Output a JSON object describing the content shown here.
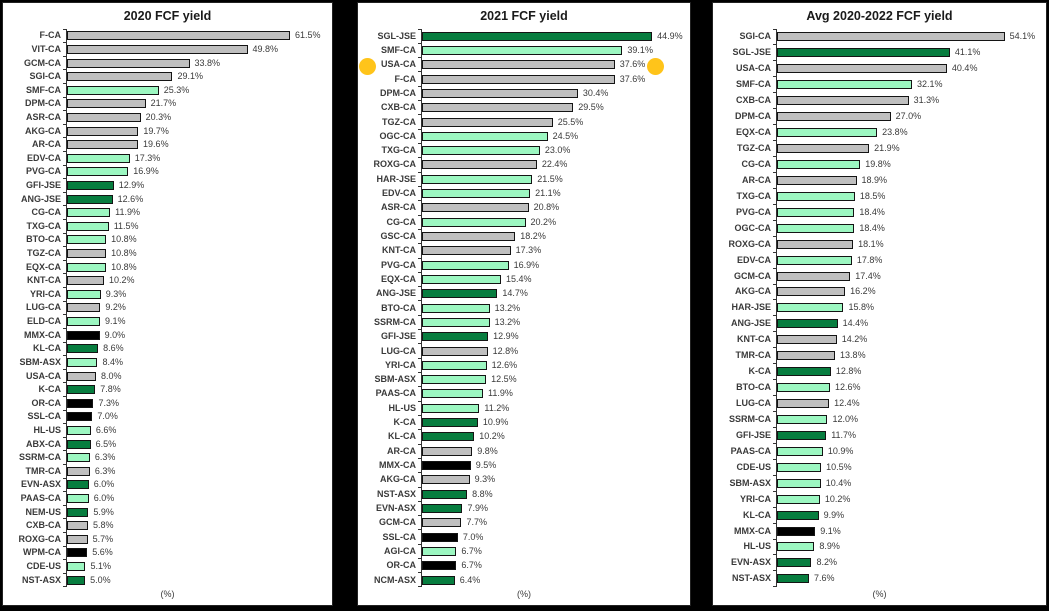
{
  "colors": {
    "gray": "#BFBFBF",
    "green_light": "#9CF7C1",
    "green_dark": "#077D3F",
    "black": "#000000",
    "bar_border": "#141414",
    "text": "#3A3A3A",
    "title_text": "#1A1A1A",
    "highlight_yellow": "#FFC41A",
    "panel_bg": "#FFFFFF",
    "frame_bg": "#000000"
  },
  "annotations": [
    {
      "shape": "circle",
      "side": "left",
      "anchor_category": "USA-CA",
      "chart": "2021 FCF yield",
      "color": "#FFC41A"
    },
    {
      "shape": "circle",
      "side": "right",
      "anchor_category": "USA-CA",
      "chart": "2021 FCF yield",
      "color": "#FFC41A"
    }
  ],
  "chart_data": [
    {
      "type": "bar",
      "orientation": "horizontal",
      "title": "2020 FCF yield",
      "xlabel": "(%)",
      "xlim": [
        0,
        72
      ],
      "grid": false,
      "legend": false,
      "value_label_format": "{value}%",
      "categories": [
        "F-CA",
        "VIT-CA",
        "GCM-CA",
        "SGI-CA",
        "SMF-CA",
        "DPM-CA",
        "ASR-CA",
        "AKG-CA",
        "AR-CA",
        "EDV-CA",
        "PVG-CA",
        "GFI-JSE",
        "ANG-JSE",
        "CG-CA",
        "TXG-CA",
        "BTO-CA",
        "TGZ-CA",
        "EQX-CA",
        "KNT-CA",
        "YRI-CA",
        "LUG-CA",
        "ELD-CA",
        "MMX-CA",
        "KL-CA",
        "SBM-ASX",
        "USA-CA",
        "K-CA",
        "OR-CA",
        "SSL-CA",
        "HL-US",
        "ABX-CA",
        "SSRM-CA",
        "TMR-CA",
        "EVN-ASX",
        "PAAS-CA",
        "NEM-US",
        "CXB-CA",
        "ROXG-CA",
        "WPM-CA",
        "CDE-US",
        "NST-ASX"
      ],
      "values": [
        61.5,
        49.8,
        33.8,
        29.1,
        25.3,
        21.7,
        20.3,
        19.7,
        19.6,
        17.3,
        16.9,
        12.9,
        12.6,
        11.9,
        11.5,
        10.8,
        10.8,
        10.8,
        10.2,
        9.3,
        9.2,
        9.1,
        9.0,
        8.6,
        8.4,
        8.0,
        7.8,
        7.3,
        7.0,
        6.6,
        6.5,
        6.3,
        6.3,
        6.0,
        6.0,
        5.9,
        5.8,
        5.7,
        5.6,
        5.1,
        5.0
      ],
      "bar_colors": [
        "gray",
        "gray",
        "gray",
        "gray",
        "green_light",
        "gray",
        "gray",
        "gray",
        "gray",
        "green_light",
        "green_light",
        "green_dark",
        "green_dark",
        "green_light",
        "green_light",
        "green_light",
        "gray",
        "green_light",
        "gray",
        "green_light",
        "gray",
        "green_light",
        "black",
        "green_dark",
        "green_light",
        "gray",
        "green_dark",
        "black",
        "black",
        "green_light",
        "green_dark",
        "green_light",
        "gray",
        "green_dark",
        "green_light",
        "green_dark",
        "gray",
        "gray",
        "black",
        "green_light",
        "green_dark"
      ]
    },
    {
      "type": "bar",
      "orientation": "horizontal",
      "title": "2021 FCF yield",
      "xlabel": "(%)",
      "xlim": [
        0,
        51.5
      ],
      "grid": false,
      "legend": false,
      "value_label_format": "{value}%",
      "categories": [
        "SGL-JSE",
        "SMF-CA",
        "USA-CA",
        "F-CA",
        "DPM-CA",
        "CXB-CA",
        "TGZ-CA",
        "OGC-CA",
        "TXG-CA",
        "ROXG-CA",
        "HAR-JSE",
        "EDV-CA",
        "ASR-CA",
        "CG-CA",
        "GSC-CA",
        "KNT-CA",
        "PVG-CA",
        "EQX-CA",
        "ANG-JSE",
        "BTO-CA",
        "SSRM-CA",
        "GFI-JSE",
        "LUG-CA",
        "YRI-CA",
        "SBM-ASX",
        "PAAS-CA",
        "HL-US",
        "K-CA",
        "KL-CA",
        "AR-CA",
        "MMX-CA",
        "AKG-CA",
        "NST-ASX",
        "EVN-ASX",
        "GCM-CA",
        "SSL-CA",
        "AGI-CA",
        "OR-CA",
        "NCM-ASX"
      ],
      "values": [
        44.9,
        39.1,
        37.6,
        37.6,
        30.4,
        29.5,
        25.5,
        24.5,
        23.0,
        22.4,
        21.5,
        21.1,
        20.8,
        20.2,
        18.2,
        17.3,
        16.9,
        15.4,
        14.7,
        13.2,
        13.2,
        12.9,
        12.8,
        12.6,
        12.5,
        11.9,
        11.2,
        10.9,
        10.2,
        9.8,
        9.5,
        9.3,
        8.8,
        7.9,
        7.7,
        7.0,
        6.7,
        6.7,
        6.4
      ],
      "bar_colors": [
        "green_dark",
        "green_light",
        "gray",
        "gray",
        "gray",
        "gray",
        "gray",
        "green_light",
        "green_light",
        "gray",
        "green_light",
        "green_light",
        "gray",
        "green_light",
        "gray",
        "gray",
        "green_light",
        "green_light",
        "green_dark",
        "green_light",
        "green_light",
        "green_dark",
        "gray",
        "green_light",
        "green_light",
        "green_light",
        "green_light",
        "green_dark",
        "green_dark",
        "gray",
        "black",
        "gray",
        "green_dark",
        "green_dark",
        "gray",
        "black",
        "green_light",
        "black",
        "green_dark"
      ]
    },
    {
      "type": "bar",
      "orientation": "horizontal",
      "title": "Avg 2020-2022 FCF yield",
      "xlabel": "(%)",
      "xlim": [
        0,
        63
      ],
      "grid": false,
      "legend": false,
      "value_label_format": "{value}%",
      "categories": [
        "SGI-CA",
        "SGL-JSE",
        "USA-CA",
        "SMF-CA",
        "CXB-CA",
        "DPM-CA",
        "EQX-CA",
        "TGZ-CA",
        "CG-CA",
        "AR-CA",
        "TXG-CA",
        "PVG-CA",
        "OGC-CA",
        "ROXG-CA",
        "EDV-CA",
        "GCM-CA",
        "AKG-CA",
        "HAR-JSE",
        "ANG-JSE",
        "KNT-CA",
        "TMR-CA",
        "K-CA",
        "BTO-CA",
        "LUG-CA",
        "SSRM-CA",
        "GFI-JSE",
        "PAAS-CA",
        "CDE-US",
        "SBM-ASX",
        "YRI-CA",
        "KL-CA",
        "MMX-CA",
        "HL-US",
        "EVN-ASX",
        "NST-ASX"
      ],
      "values": [
        54.1,
        41.1,
        40.4,
        32.1,
        31.3,
        27.0,
        23.8,
        21.9,
        19.8,
        18.9,
        18.5,
        18.4,
        18.4,
        18.1,
        17.8,
        17.4,
        16.2,
        15.8,
        14.4,
        14.2,
        13.8,
        12.8,
        12.6,
        12.4,
        12.0,
        11.7,
        10.9,
        10.5,
        10.4,
        10.2,
        9.9,
        9.1,
        8.9,
        8.2,
        7.6
      ],
      "bar_colors": [
        "gray",
        "green_dark",
        "gray",
        "green_light",
        "gray",
        "gray",
        "green_light",
        "gray",
        "green_light",
        "gray",
        "green_light",
        "green_light",
        "green_light",
        "gray",
        "green_light",
        "gray",
        "gray",
        "green_light",
        "green_dark",
        "gray",
        "gray",
        "green_dark",
        "green_light",
        "gray",
        "green_light",
        "green_dark",
        "green_light",
        "green_light",
        "green_light",
        "green_light",
        "green_dark",
        "black",
        "green_light",
        "green_dark",
        "green_dark"
      ]
    }
  ]
}
